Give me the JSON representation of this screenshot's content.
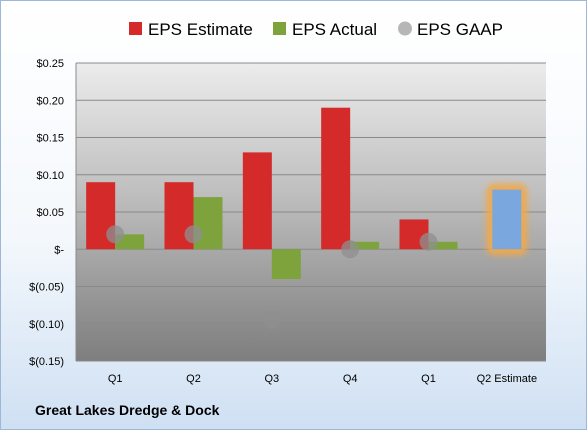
{
  "company_name": "Great Lakes Dredge & Dock",
  "colors": {
    "estimate": "#d42a2a",
    "actual": "#7ea33c",
    "gaap": "#b6b6b6",
    "forecast": "#7aa7dd",
    "forecast_glow": "#f2a94a"
  },
  "chart_data": {
    "type": "bar",
    "categories": [
      "Q1",
      "Q2",
      "Q3",
      "Q4",
      "Q1",
      "Q2 Estimate"
    ],
    "series": [
      {
        "name": "EPS Estimate",
        "values": [
          0.09,
          0.09,
          0.13,
          0.19,
          0.04,
          null
        ]
      },
      {
        "name": "EPS Actual",
        "values": [
          0.02,
          0.07,
          -0.04,
          0.01,
          0.01,
          null
        ]
      },
      {
        "name": "EPS GAAP",
        "values": [
          0.02,
          0.02,
          -0.095,
          0.0,
          0.01,
          null
        ]
      }
    ],
    "forecast": {
      "category": "Q2 Estimate",
      "value": 0.08
    },
    "ylim": [
      -0.15,
      0.25
    ],
    "yticks": [
      {
        "value": 0.25,
        "label": "$0.25"
      },
      {
        "value": 0.2,
        "label": "$0.20"
      },
      {
        "value": 0.15,
        "label": "$0.15"
      },
      {
        "value": 0.1,
        "label": "$0.10"
      },
      {
        "value": 0.05,
        "label": "$0.05"
      },
      {
        "value": 0.0,
        "label": "$-"
      },
      {
        "value": -0.05,
        "label": "$(0.05)"
      },
      {
        "value": -0.1,
        "label": "$(0.10)"
      },
      {
        "value": -0.15,
        "label": "$(0.15)"
      }
    ],
    "grid": true,
    "legend": "top"
  }
}
